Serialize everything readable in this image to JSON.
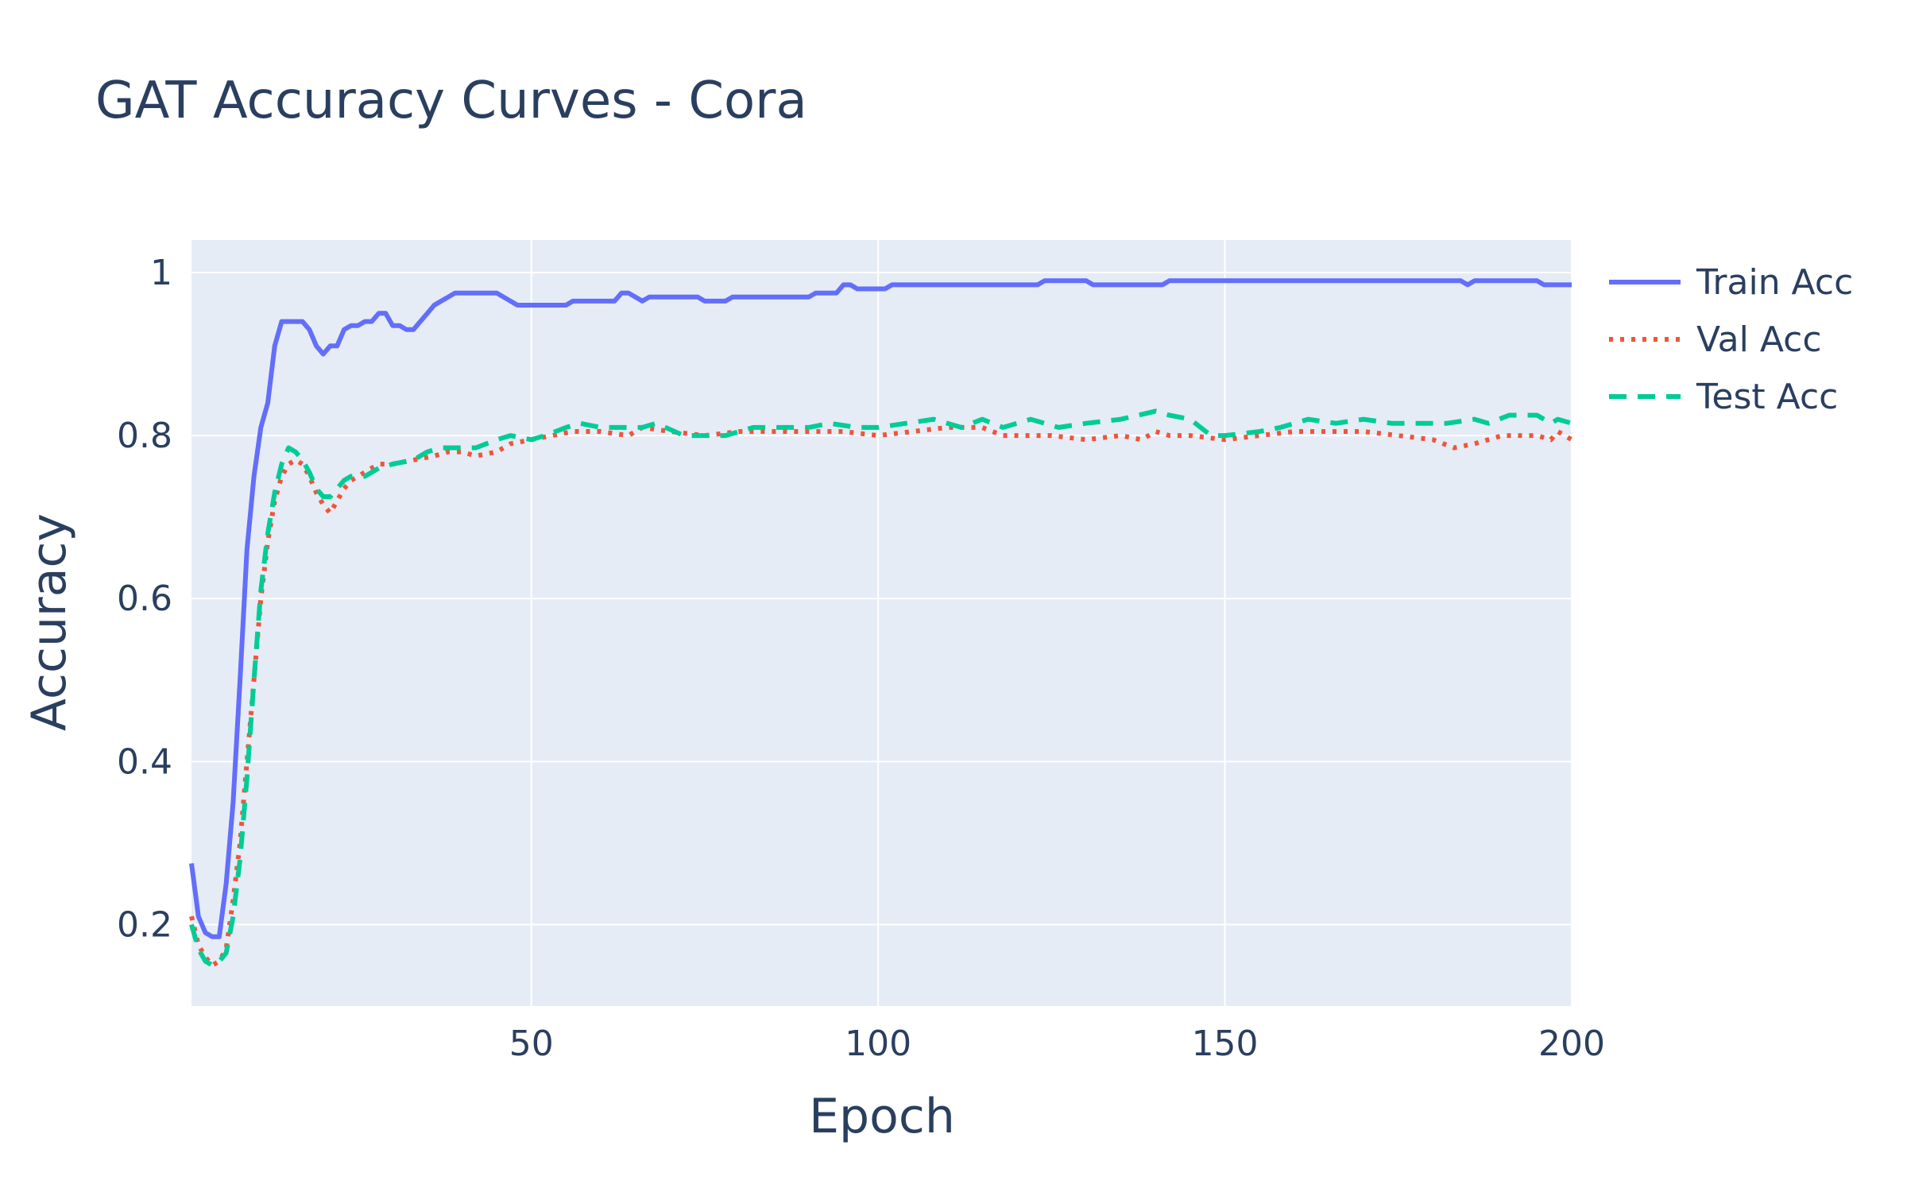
{
  "chart_data": {
    "type": "line",
    "title": "GAT Accuracy Curves - Cora",
    "xlabel": "Epoch",
    "ylabel": "Accuracy",
    "xlim": [
      1,
      200
    ],
    "ylim": [
      0.1,
      1.04
    ],
    "x_ticks": [
      50,
      100,
      150,
      200
    ],
    "y_ticks": [
      0.2,
      0.4,
      0.6,
      0.8,
      1
    ],
    "y_tick_labels": [
      "0.2",
      "0.4",
      "0.6",
      "0.8",
      "1"
    ],
    "grid": true,
    "legend_position": "top-right",
    "plot_background": "#e5ecf6",
    "series": [
      {
        "name": "Train Acc",
        "color": "#636efa",
        "dash": "solid",
        "points": [
          [
            1,
            0.275
          ],
          [
            2,
            0.21
          ],
          [
            3,
            0.19
          ],
          [
            4,
            0.185
          ],
          [
            5,
            0.185
          ],
          [
            6,
            0.25
          ],
          [
            7,
            0.35
          ],
          [
            8,
            0.5
          ],
          [
            9,
            0.66
          ],
          [
            10,
            0.75
          ],
          [
            11,
            0.81
          ],
          [
            12,
            0.84
          ],
          [
            13,
            0.91
          ],
          [
            14,
            0.94
          ],
          [
            15,
            0.94
          ],
          [
            16,
            0.94
          ],
          [
            17,
            0.94
          ],
          [
            18,
            0.93
          ],
          [
            19,
            0.91
          ],
          [
            20,
            0.9
          ],
          [
            21,
            0.91
          ],
          [
            22,
            0.91
          ],
          [
            23,
            0.93
          ],
          [
            24,
            0.935
          ],
          [
            25,
            0.935
          ],
          [
            26,
            0.94
          ],
          [
            27,
            0.94
          ],
          [
            28,
            0.95
          ],
          [
            29,
            0.95
          ],
          [
            30,
            0.935
          ],
          [
            31,
            0.935
          ],
          [
            32,
            0.93
          ],
          [
            33,
            0.93
          ],
          [
            34,
            0.94
          ],
          [
            35,
            0.95
          ],
          [
            36,
            0.96
          ],
          [
            37,
            0.965
          ],
          [
            38,
            0.97
          ],
          [
            39,
            0.975
          ],
          [
            40,
            0.975
          ],
          [
            45,
            0.975
          ],
          [
            46,
            0.97
          ],
          [
            48,
            0.96
          ],
          [
            55,
            0.96
          ],
          [
            56,
            0.965
          ],
          [
            62,
            0.965
          ],
          [
            63,
            0.975
          ],
          [
            64,
            0.975
          ],
          [
            66,
            0.965
          ],
          [
            67,
            0.97
          ],
          [
            74,
            0.97
          ],
          [
            75,
            0.965
          ],
          [
            78,
            0.965
          ],
          [
            79,
            0.97
          ],
          [
            90,
            0.97
          ],
          [
            91,
            0.975
          ],
          [
            94,
            0.975
          ],
          [
            95,
            0.985
          ],
          [
            96,
            0.985
          ],
          [
            97,
            0.98
          ],
          [
            101,
            0.98
          ],
          [
            102,
            0.985
          ],
          [
            123,
            0.985
          ],
          [
            124,
            0.99
          ],
          [
            130,
            0.99
          ],
          [
            131,
            0.985
          ],
          [
            141,
            0.985
          ],
          [
            142,
            0.99
          ],
          [
            184,
            0.99
          ],
          [
            185,
            0.985
          ],
          [
            186,
            0.99
          ],
          [
            195,
            0.99
          ],
          [
            196,
            0.985
          ],
          [
            200,
            0.985
          ]
        ]
      },
      {
        "name": "Val Acc",
        "color": "#ef553b",
        "dash": "dot",
        "points": [
          [
            1,
            0.21
          ],
          [
            2,
            0.175
          ],
          [
            3,
            0.16
          ],
          [
            4,
            0.15
          ],
          [
            5,
            0.155
          ],
          [
            6,
            0.17
          ],
          [
            7,
            0.23
          ],
          [
            8,
            0.3
          ],
          [
            9,
            0.4
          ],
          [
            10,
            0.5
          ],
          [
            11,
            0.6
          ],
          [
            12,
            0.67
          ],
          [
            13,
            0.72
          ],
          [
            14,
            0.75
          ],
          [
            15,
            0.765
          ],
          [
            16,
            0.77
          ],
          [
            17,
            0.765
          ],
          [
            18,
            0.75
          ],
          [
            19,
            0.73
          ],
          [
            20,
            0.715
          ],
          [
            21,
            0.705
          ],
          [
            22,
            0.72
          ],
          [
            23,
            0.735
          ],
          [
            24,
            0.745
          ],
          [
            25,
            0.75
          ],
          [
            26,
            0.755
          ],
          [
            27,
            0.76
          ],
          [
            28,
            0.765
          ],
          [
            30,
            0.765
          ],
          [
            33,
            0.77
          ],
          [
            36,
            0.775
          ],
          [
            38,
            0.78
          ],
          [
            40,
            0.78
          ],
          [
            42,
            0.775
          ],
          [
            45,
            0.78
          ],
          [
            47,
            0.79
          ],
          [
            50,
            0.795
          ],
          [
            53,
            0.8
          ],
          [
            56,
            0.805
          ],
          [
            60,
            0.805
          ],
          [
            64,
            0.8
          ],
          [
            66,
            0.81
          ],
          [
            70,
            0.805
          ],
          [
            75,
            0.8
          ],
          [
            80,
            0.805
          ],
          [
            85,
            0.805
          ],
          [
            90,
            0.805
          ],
          [
            95,
            0.805
          ],
          [
            100,
            0.8
          ],
          [
            105,
            0.805
          ],
          [
            110,
            0.81
          ],
          [
            115,
            0.81
          ],
          [
            118,
            0.8
          ],
          [
            125,
            0.8
          ],
          [
            130,
            0.795
          ],
          [
            135,
            0.8
          ],
          [
            138,
            0.795
          ],
          [
            140,
            0.805
          ],
          [
            142,
            0.8
          ],
          [
            145,
            0.8
          ],
          [
            150,
            0.795
          ],
          [
            155,
            0.8
          ],
          [
            160,
            0.805
          ],
          [
            165,
            0.805
          ],
          [
            170,
            0.805
          ],
          [
            175,
            0.8
          ],
          [
            180,
            0.795
          ],
          [
            183,
            0.785
          ],
          [
            186,
            0.79
          ],
          [
            190,
            0.8
          ],
          [
            195,
            0.8
          ],
          [
            197,
            0.795
          ],
          [
            198,
            0.805
          ],
          [
            200,
            0.795
          ]
        ]
      },
      {
        "name": "Test Acc",
        "color": "#00cc96",
        "dash": "dash",
        "points": [
          [
            1,
            0.2
          ],
          [
            2,
            0.17
          ],
          [
            3,
            0.155
          ],
          [
            4,
            0.15
          ],
          [
            5,
            0.155
          ],
          [
            6,
            0.165
          ],
          [
            7,
            0.21
          ],
          [
            8,
            0.28
          ],
          [
            9,
            0.38
          ],
          [
            10,
            0.5
          ],
          [
            11,
            0.61
          ],
          [
            12,
            0.68
          ],
          [
            13,
            0.73
          ],
          [
            14,
            0.765
          ],
          [
            15,
            0.785
          ],
          [
            16,
            0.78
          ],
          [
            17,
            0.77
          ],
          [
            18,
            0.755
          ],
          [
            19,
            0.735
          ],
          [
            20,
            0.725
          ],
          [
            21,
            0.725
          ],
          [
            22,
            0.735
          ],
          [
            23,
            0.745
          ],
          [
            24,
            0.75
          ],
          [
            25,
            0.75
          ],
          [
            26,
            0.75
          ],
          [
            27,
            0.755
          ],
          [
            28,
            0.76
          ],
          [
            30,
            0.765
          ],
          [
            33,
            0.77
          ],
          [
            35,
            0.78
          ],
          [
            37,
            0.785
          ],
          [
            40,
            0.785
          ],
          [
            42,
            0.785
          ],
          [
            45,
            0.795
          ],
          [
            47,
            0.8
          ],
          [
            50,
            0.795
          ],
          [
            52,
            0.8
          ],
          [
            55,
            0.81
          ],
          [
            57,
            0.815
          ],
          [
            60,
            0.81
          ],
          [
            63,
            0.81
          ],
          [
            66,
            0.81
          ],
          [
            68,
            0.815
          ],
          [
            72,
            0.8
          ],
          [
            75,
            0.8
          ],
          [
            78,
            0.8
          ],
          [
            82,
            0.81
          ],
          [
            86,
            0.81
          ],
          [
            90,
            0.81
          ],
          [
            93,
            0.815
          ],
          [
            97,
            0.81
          ],
          [
            100,
            0.81
          ],
          [
            104,
            0.815
          ],
          [
            108,
            0.82
          ],
          [
            112,
            0.81
          ],
          [
            115,
            0.82
          ],
          [
            118,
            0.81
          ],
          [
            122,
            0.82
          ],
          [
            126,
            0.81
          ],
          [
            130,
            0.815
          ],
          [
            135,
            0.82
          ],
          [
            140,
            0.83
          ],
          [
            142,
            0.825
          ],
          [
            145,
            0.82
          ],
          [
            148,
            0.8
          ],
          [
            150,
            0.8
          ],
          [
            155,
            0.805
          ],
          [
            158,
            0.81
          ],
          [
            162,
            0.82
          ],
          [
            166,
            0.815
          ],
          [
            170,
            0.82
          ],
          [
            174,
            0.815
          ],
          [
            178,
            0.815
          ],
          [
            182,
            0.815
          ],
          [
            186,
            0.82
          ],
          [
            188,
            0.815
          ],
          [
            191,
            0.825
          ],
          [
            195,
            0.825
          ],
          [
            197,
            0.815
          ],
          [
            198,
            0.82
          ],
          [
            200,
            0.815
          ]
        ]
      }
    ]
  }
}
